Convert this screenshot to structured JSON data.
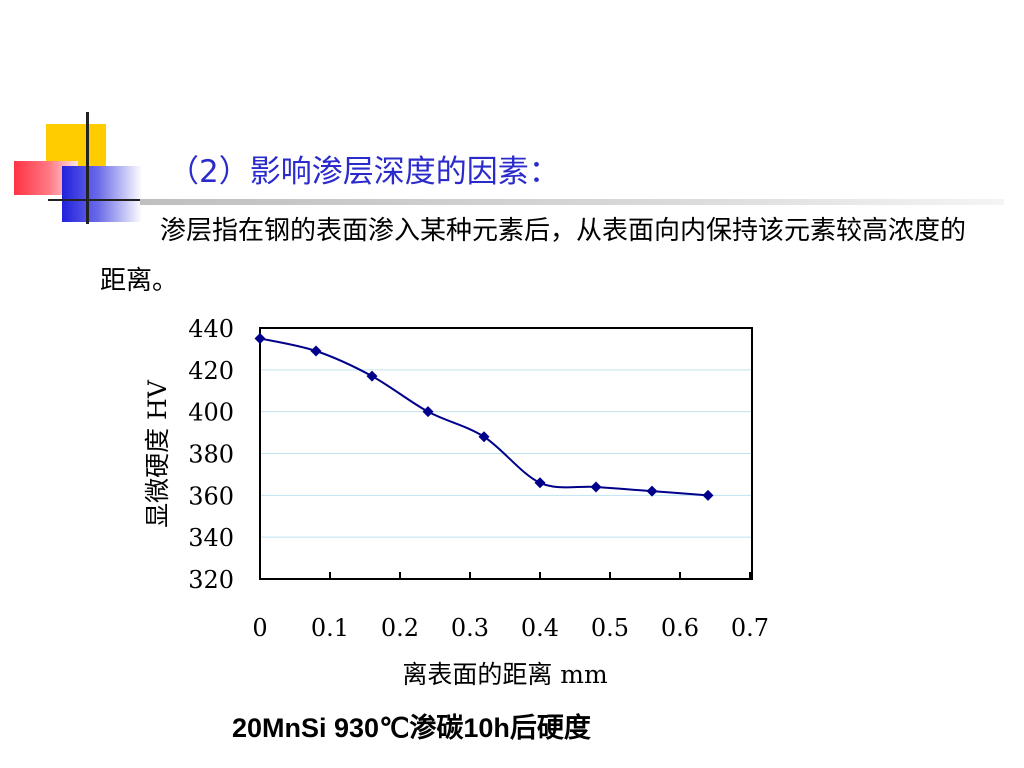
{
  "slide": {
    "title": "（2）影响渗层深度的因素：",
    "body": "渗层指在钢的表面渗入某种元素后，从表面向内保持该元素较高浓度的距离。",
    "caption": "20MnSi 930℃渗碳10h后硬度"
  },
  "chart_data": {
    "type": "line",
    "title": "",
    "xlabel": "离表面的距离 mm",
    "ylabel": "显微硬度 HV",
    "xlim": [
      0,
      0.7
    ],
    "ylim": [
      320,
      440
    ],
    "xticks": [
      "0",
      "0.1",
      "0.2",
      "0.3",
      "0.4",
      "0.5",
      "0.6",
      "0.7"
    ],
    "yticks": [
      "440",
      "420",
      "400",
      "380",
      "360",
      "340",
      "320"
    ],
    "grid": true,
    "legend": "none",
    "series": [
      {
        "color": "#00008b",
        "marker": "diamond",
        "smooth": true,
        "x": [
          0,
          0.08,
          0.16,
          0.24,
          0.32,
          0.4,
          0.48,
          0.56,
          0.64
        ],
        "y": [
          435,
          429,
          417,
          400,
          388,
          366,
          364,
          362,
          360
        ]
      }
    ]
  }
}
